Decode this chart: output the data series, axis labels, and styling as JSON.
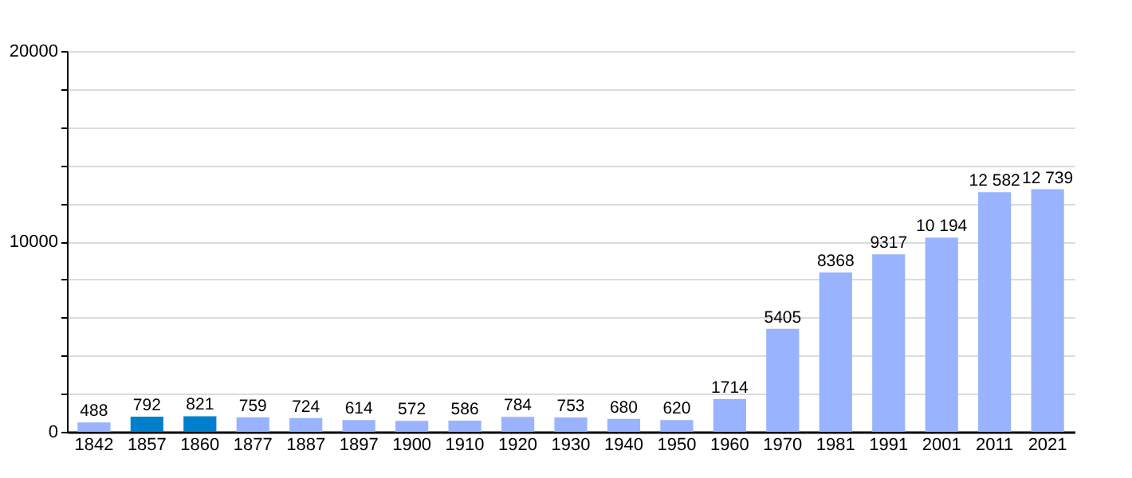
{
  "chart_data": {
    "type": "bar",
    "categories": [
      "1842",
      "1857",
      "1860",
      "1877",
      "1887",
      "1897",
      "1900",
      "1910",
      "1920",
      "1930",
      "1940",
      "1950",
      "1960",
      "1970",
      "1981",
      "1991",
      "2001",
      "2011",
      "2021"
    ],
    "values": [
      488,
      792,
      821,
      759,
      724,
      614,
      572,
      586,
      784,
      753,
      680,
      620,
      1714,
      5405,
      8368,
      9317,
      10194,
      12582,
      12739
    ],
    "value_labels": [
      "488",
      "792",
      "821",
      "759",
      "724",
      "614",
      "572",
      "586",
      "784",
      "753",
      "680",
      "620",
      "1714",
      "5405",
      "8368",
      "9317",
      "10 194",
      "12 582",
      "12 739"
    ],
    "colors": [
      "#99b3ff",
      "#0080cc",
      "#0080cc",
      "#99b3ff",
      "#99b3ff",
      "#99b3ff",
      "#99b3ff",
      "#99b3ff",
      "#99b3ff",
      "#99b3ff",
      "#99b3ff",
      "#99b3ff",
      "#99b3ff",
      "#99b3ff",
      "#99b3ff",
      "#99b3ff",
      "#99b3ff",
      "#99b3ff",
      "#99b3ff"
    ],
    "ylim": [
      0,
      20000
    ],
    "yticks": [
      0,
      {
        "value": 2000,
        "label": null
      },
      {
        "value": 4000,
        "label": null
      },
      {
        "value": 6000,
        "label": null
      },
      {
        "value": 8000,
        "label": null
      },
      10000,
      {
        "value": 12000,
        "label": null
      },
      {
        "value": 14000,
        "label": null
      },
      {
        "value": 16000,
        "label": null
      },
      {
        "value": 18000,
        "label": null
      },
      20000
    ],
    "grid": true
  }
}
